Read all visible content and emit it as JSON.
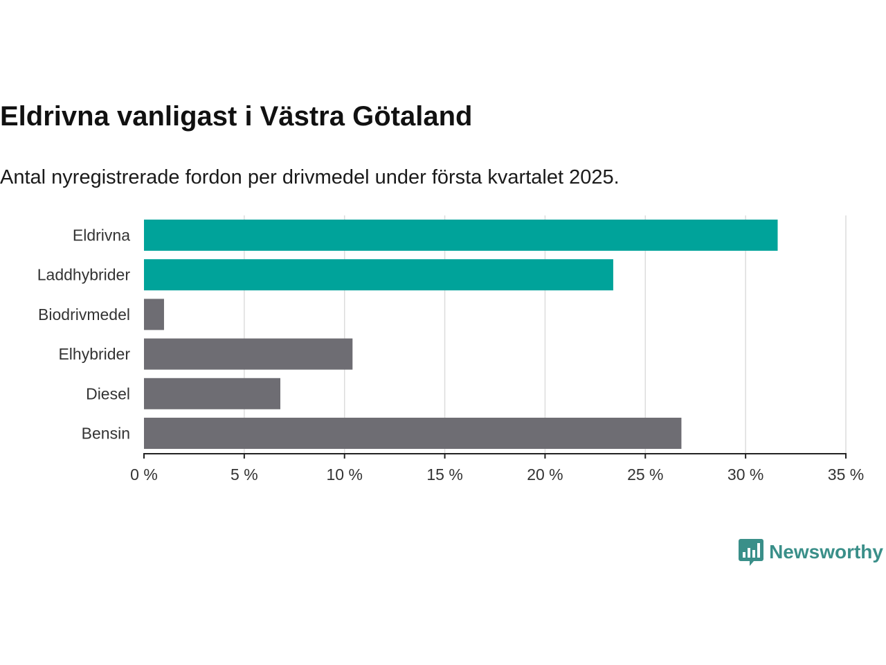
{
  "title": "Eldrivna vanligast i Västra Götaland",
  "subtitle": "Antal nyregistrerade fordon per drivmedel under första kvartalet 2025.",
  "colors": {
    "highlight": "#00a39a",
    "neutral": "#6e6d73",
    "brand": "#3a8f89"
  },
  "brand": {
    "name": "Newsworthy",
    "icon": "bar-chart-speech-bubble-icon"
  },
  "chart_data": {
    "type": "bar",
    "orientation": "horizontal",
    "categories": [
      "Eldrivna",
      "Laddhybrider",
      "Biodrivmedel",
      "Elhybrider",
      "Diesel",
      "Bensin"
    ],
    "values": [
      31.6,
      23.4,
      1.0,
      10.4,
      6.8,
      26.8
    ],
    "highlighted": [
      true,
      true,
      false,
      false,
      false,
      false
    ],
    "value_unit": "%",
    "xlim": [
      0,
      35
    ],
    "xticks": [
      0,
      5,
      10,
      15,
      20,
      25,
      30,
      35
    ],
    "xtick_labels": [
      "0 %",
      "5 %",
      "10 %",
      "15 %",
      "20 %",
      "25 %",
      "30 %",
      "35 %"
    ],
    "grid": "vertical",
    "legend": "none"
  }
}
